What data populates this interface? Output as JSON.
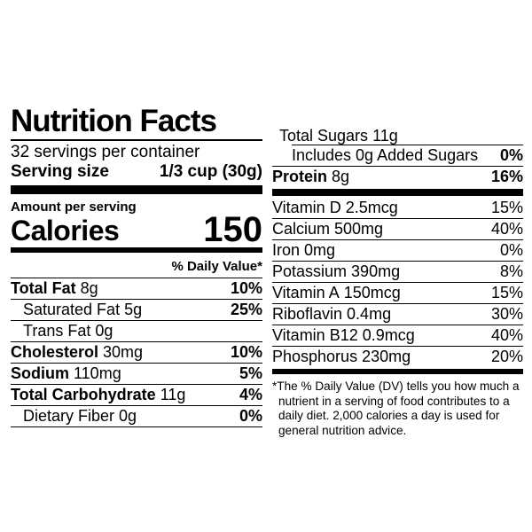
{
  "label": {
    "title": "Nutrition Facts",
    "servings_per_container": "32 servings per container",
    "serving_size_label": "Serving size",
    "serving_size_value": "1/3 cup (30g)",
    "amount_per_serving": "Amount per serving",
    "calories_label": "Calories",
    "calories_value": "150",
    "daily_value_header": "% Daily Value*",
    "left_rows": [
      {
        "name": "Total Fat",
        "amount": "8g",
        "dv": "10%"
      },
      {
        "name": "Saturated Fat",
        "amount": "5g",
        "dv": "25%"
      },
      {
        "name": "Trans Fat",
        "amount": "0g",
        "dv": ""
      },
      {
        "name": "Cholesterol",
        "amount": "30mg",
        "dv": "10%"
      },
      {
        "name": "Sodium",
        "amount": "110mg",
        "dv": "5%"
      },
      {
        "name": "Total Carbohydrate",
        "amount": "11g",
        "dv": "4%"
      },
      {
        "name": "Dietary Fiber",
        "amount": "0g",
        "dv": "0%"
      }
    ],
    "right_rows": [
      {
        "name": "Total Sugars",
        "amount": "11g",
        "dv": ""
      },
      {
        "name": "Includes 0g Added Sugars",
        "amount": "",
        "dv": "0%"
      },
      {
        "name": "Protein",
        "amount": "8g",
        "dv": "16%"
      }
    ],
    "vitamin_rows": [
      {
        "name": "Vitamin D",
        "amount": "2.5mcg",
        "dv": "15%"
      },
      {
        "name": "Calcium",
        "amount": "500mg",
        "dv": "40%"
      },
      {
        "name": "Iron",
        "amount": "0mg",
        "dv": "0%"
      },
      {
        "name": "Potassium",
        "amount": "390mg",
        "dv": "8%"
      },
      {
        "name": "Vitamin A",
        "amount": "150mcg",
        "dv": "15%"
      },
      {
        "name": "Riboflavin",
        "amount": "0.4mg",
        "dv": "30%"
      },
      {
        "name": "Vitamin B12",
        "amount": "0.9mcg",
        "dv": "40%"
      },
      {
        "name": "Phosphorus",
        "amount": "230mg",
        "dv": "20%"
      }
    ],
    "footnote": "*The % Daily Value (DV) tells you how much a nutrient in a serving of food contributes to a daily diet. 2,000 calories a day is used for general nutrition advice."
  }
}
